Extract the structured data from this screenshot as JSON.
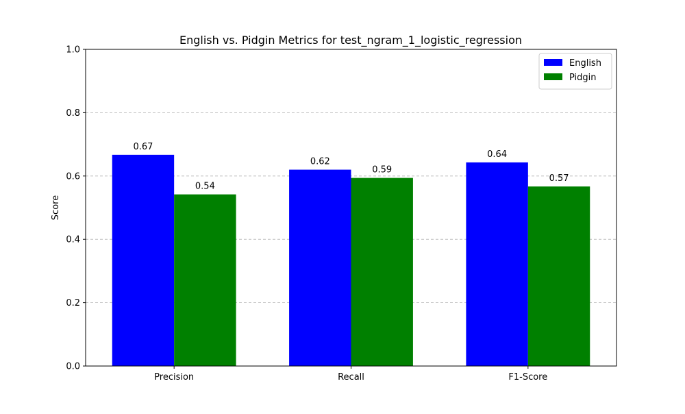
{
  "chart_data": {
    "type": "bar",
    "title": "English vs. Pidgin Metrics for test_ngram_1_logistic_regression",
    "xlabel": "",
    "ylabel": "Score",
    "ylim": [
      0,
      1.0
    ],
    "yticks": [
      "0.0",
      "0.2",
      "0.4",
      "0.6",
      "0.8",
      "1.0"
    ],
    "categories": [
      "Precision",
      "Recall",
      "F1-Score"
    ],
    "series": [
      {
        "name": "English",
        "color": "#0000ff",
        "values": [
          0.667,
          0.62,
          0.643
        ],
        "labels": [
          "0.67",
          "0.62",
          "0.64"
        ]
      },
      {
        "name": "Pidgin",
        "color": "#008000",
        "values": [
          0.542,
          0.594,
          0.567
        ],
        "labels": [
          "0.54",
          "0.59",
          "0.57"
        ]
      }
    ],
    "grid": "y-dashed",
    "legend_position": "top-right"
  }
}
